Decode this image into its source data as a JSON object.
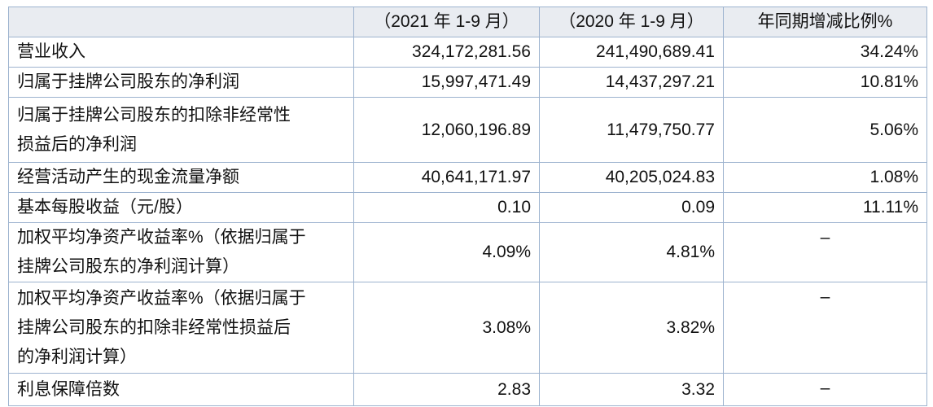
{
  "table": {
    "header": [
      "（2021 年 1-9 月）",
      "（2020 年 1-9 月）",
      "年同期增减比例%"
    ],
    "rows": [
      {
        "label": [
          "营业收入"
        ],
        "cells": [
          "324,172,281.56",
          "241,490,689.41",
          "34.24%"
        ]
      },
      {
        "label": [
          "归属于挂牌公司股东的净利润"
        ],
        "cells": [
          "15,997,471.49",
          "14,437,297.21",
          "10.81%"
        ]
      },
      {
        "label": [
          "归属于挂牌公司股东的扣除非经常性",
          "损益后的净利润"
        ],
        "cells": [
          "12,060,196.89",
          "11,479,750.77",
          "5.06%"
        ]
      },
      {
        "label": [
          "经营活动产生的现金流量净额"
        ],
        "cells": [
          "40,641,171.97",
          "40,205,024.83",
          "1.08%"
        ]
      },
      {
        "label": [
          "基本每股收益（元/股）"
        ],
        "cells": [
          "0.10",
          "0.09",
          "11.11%"
        ]
      },
      {
        "label": [
          "加权平均净资产收益率%（依据归属于",
          "挂牌公司股东的净利润计算）"
        ],
        "cells": [
          "4.09%",
          "4.81%",
          "–"
        ]
      },
      {
        "label": [
          "加权平均净资产收益率%（依据归属于",
          "挂牌公司股东的扣除非经常性损益后",
          "的净利润计算）"
        ],
        "cells": [
          "3.08%",
          "3.82%",
          "–"
        ]
      },
      {
        "label": [
          "利息保障倍数"
        ],
        "cells": [
          "2.83",
          "3.32",
          "–"
        ]
      }
    ]
  }
}
